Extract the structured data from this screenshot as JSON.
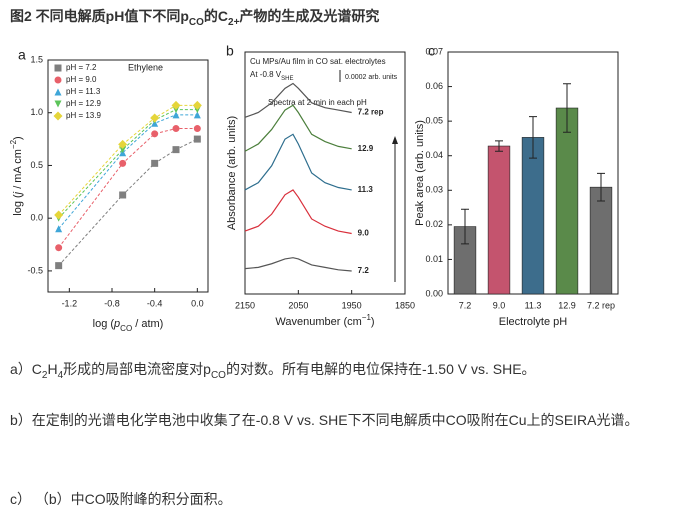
{
  "title": [
    "图2 不同电解质pH值下不同p",
    "CO",
    "的C",
    "2+",
    "产物的生成及光谱研究"
  ],
  "chart_data": [
    {
      "type": "line",
      "panel": "a",
      "annotation": "Ethylene",
      "xlabel": [
        "log (",
        "p",
        "CO",
        " / atm)"
      ],
      "ylabel": [
        "log (",
        "j",
        " / mA cm",
        "−2",
        ")"
      ],
      "x": [
        -1.3,
        -0.7,
        -0.4,
        -0.2,
        0.0
      ],
      "xlim": [
        -1.4,
        0.1
      ],
      "xticks": [
        -1.2,
        -0.8,
        -0.4,
        {
          "value": 0,
          "label": "0.0"
        }
      ],
      "ylim": [
        -0.7,
        1.5
      ],
      "yticks": [
        -0.5,
        {
          "value": 0,
          "label": "0.0"
        },
        0.5,
        {
          "value": 1,
          "label": "1.0"
        },
        1.5
      ],
      "line_style": "dashed",
      "legend": "upper left",
      "series": [
        {
          "name": "pH = 7.2",
          "color": "#7f7f7f",
          "marker": "square",
          "values": [
            -0.45,
            0.22,
            0.52,
            0.65,
            0.75
          ]
        },
        {
          "name": "pH = 9.0",
          "color": "#e8606a",
          "marker": "circle",
          "values": [
            -0.28,
            0.52,
            0.8,
            0.85,
            0.85
          ]
        },
        {
          "name": "pH = 11.3",
          "color": "#3fa6d8",
          "marker": "triangle",
          "values": [
            -0.1,
            0.62,
            0.9,
            0.98,
            0.98
          ]
        },
        {
          "name": "pH = 12.9",
          "color": "#5cc45a",
          "marker": "triangle-down",
          "values": [
            0.0,
            0.65,
            0.93,
            1.03,
            1.03
          ]
        },
        {
          "name": "pH = 13.9",
          "color": "#e5d53a",
          "marker": "diamond",
          "values": [
            0.03,
            0.7,
            0.95,
            1.07,
            1.07
          ]
        }
      ]
    },
    {
      "type": "line",
      "panel": "b",
      "notes": [
        "Cu MPs/Au film in CO sat. electrolytes",
        "At -0.8 V",
        "SHE",
        "0.0002 arb. units",
        "Spectra at 2 min in each pH"
      ],
      "xlabel": [
        "Wavenumber (cm",
        "−1",
        ")"
      ],
      "ylabel": "Absorbance (arb. units)",
      "x": [
        2150,
        2125,
        2100,
        2075,
        2060,
        2050,
        2025,
        2000,
        1975,
        1950
      ],
      "xlim": [
        2150,
        1850
      ],
      "xticks": [
        2150,
        2050,
        1950,
        1850
      ],
      "ylim": [
        0,
        10
      ],
      "line_style": "solid",
      "series": [
        {
          "name": "7.2",
          "color": "#555555",
          "values": [
            1.05,
            1.1,
            1.25,
            1.45,
            1.5,
            1.45,
            1.2,
            1.1,
            1.0,
            0.95
          ]
        },
        {
          "name": "9.0",
          "color": "#d9303c",
          "values": [
            2.6,
            2.8,
            3.3,
            4.1,
            4.3,
            4.0,
            3.1,
            2.8,
            2.6,
            2.5
          ]
        },
        {
          "name": "11.3",
          "color": "#2e6e8e",
          "values": [
            4.3,
            4.6,
            5.3,
            6.4,
            6.6,
            6.2,
            5.0,
            4.6,
            4.4,
            4.3
          ]
        },
        {
          "name": "12.9",
          "color": "#4c7f3c",
          "values": [
            5.9,
            6.2,
            6.8,
            7.6,
            7.8,
            7.5,
            6.6,
            6.3,
            6.1,
            6.0
          ]
        },
        {
          "name": "7.2 rep",
          "color": "#555555",
          "values": [
            7.3,
            7.5,
            7.9,
            8.5,
            8.7,
            8.5,
            7.9,
            7.7,
            7.6,
            7.5
          ]
        }
      ]
    },
    {
      "type": "bar",
      "panel": "c",
      "xlabel": "Electrolyte pH",
      "ylabel": "Peak area (arb. units)",
      "categories": [
        "7.2",
        "9.0",
        "11.3",
        "12.9",
        "7.2 rep"
      ],
      "values": [
        0.0195,
        0.0428,
        0.0453,
        0.0538,
        0.0309
      ],
      "errors": [
        0.005,
        0.0015,
        0.006,
        0.007,
        0.004
      ],
      "colors": [
        "#6e6e6e",
        "#c4546e",
        "#3d6d8c",
        "#5a8a4a",
        "#6e6e6e"
      ],
      "ylim": [
        0,
        0.07
      ],
      "yticks": [
        {
          "value": 0,
          "label": "0.00"
        },
        {
          "value": 0.01,
          "label": "0.01"
        },
        {
          "value": 0.02,
          "label": "0.02"
        },
        {
          "value": 0.03,
          "label": "0.03"
        },
        {
          "value": 0.04,
          "label": "0.04"
        },
        {
          "value": 0.05,
          "label": "0.05"
        },
        {
          "value": 0.06,
          "label": "0.06"
        },
        {
          "value": 0.07,
          "label": "0.07"
        }
      ]
    }
  ],
  "captions": [
    [
      "a）C",
      "2",
      "H",
      "4",
      "形成的局部电流密度对p",
      "CO",
      "的对数。所有电解的电位保持在-1.50 V vs. SHE。"
    ],
    [
      "b）在定制的光谱电化学电池中收集了在-0.8 V vs. SHE下不同电解质中CO吸附在Cu上的SEIRA光谱。"
    ],
    [
      "c）  （b）中CO吸附峰的积分面积。"
    ]
  ]
}
